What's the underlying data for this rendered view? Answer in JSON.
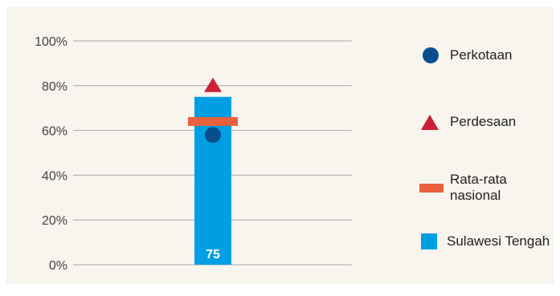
{
  "chart_data": {
    "type": "bar",
    "categories": [
      "Sulawesi Tengah"
    ],
    "ylim": [
      0,
      100
    ],
    "yticks": [
      "0%",
      "20%",
      "40%",
      "60%",
      "80%",
      "100%"
    ],
    "grid": true,
    "legend_position": "right",
    "series": [
      {
        "name": "Sulawesi Tengah",
        "kind": "bar",
        "values": [
          75
        ],
        "data_label": "75",
        "color": "#009fe3"
      },
      {
        "name": "Perkotaan",
        "kind": "circle",
        "values": [
          58
        ],
        "color": "#0a4d8c"
      },
      {
        "name": "Perdesaan",
        "kind": "triangle",
        "values": [
          80
        ],
        "color": "#cc1f36"
      },
      {
        "name": "Rata-rata\nnasional",
        "kind": "line",
        "values": [
          64
        ],
        "color": "#e8613c"
      }
    ]
  }
}
